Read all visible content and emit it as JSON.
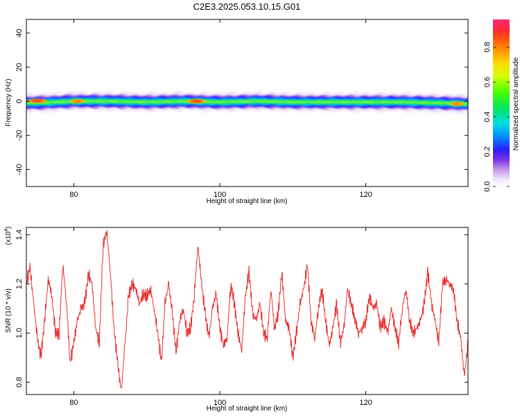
{
  "page": {
    "title": "C2E3.2025.053.10.15.G01"
  },
  "chart_data": [
    {
      "type": "heatmap",
      "title": "C2E3.2025.053.10.15.G01",
      "xlabel": "Height of straight line (km)",
      "ylabel": "Frequency (Hz)",
      "xlim": [
        73.5,
        134
      ],
      "ylim": [
        -50,
        48
      ],
      "xticks": [
        80,
        100,
        120
      ],
      "yticks": [
        -40,
        -20,
        0,
        20,
        40
      ],
      "band": {
        "center_hz": [
          [
            73.5,
            -1.0
          ],
          [
            76,
            -0.8
          ],
          [
            80,
            0.0
          ],
          [
            85,
            0.0
          ],
          [
            90,
            -0.5
          ],
          [
            95,
            0.0
          ],
          [
            100,
            -0.5
          ],
          [
            105,
            0.0
          ],
          [
            110,
            -0.5
          ],
          [
            115,
            -0.5
          ],
          [
            120,
            -0.5
          ],
          [
            125,
            -0.5
          ],
          [
            130,
            -1.0
          ],
          [
            133.5,
            -1.5
          ]
        ],
        "halfwidth_hz": 3.5,
        "peaks": [
          {
            "x": 75.0,
            "y": 0.2,
            "amplitude": 0.95
          },
          {
            "x": 96.8,
            "y": 0.0,
            "amplitude": 0.95
          },
          {
            "x": 132.5,
            "y": -1.5,
            "amplitude": 0.8
          },
          {
            "x": 80.5,
            "y": 0.0,
            "amplitude": 0.75
          }
        ]
      },
      "colorbar": {
        "label": "Normalized spectral amplitude",
        "range": [
          0,
          0.96
        ],
        "ticks": [
          "0.0",
          "0.2",
          "0.4",
          "0.6",
          "0.8"
        ]
      }
    },
    {
      "type": "line",
      "xlabel": "Height of straight line (km)",
      "ylabel": "SNR (10 * v/v)",
      "scale_label": "(x10",
      "scale_exp": "4",
      "scale_close": ")",
      "xlim": [
        73.5,
        134
      ],
      "ylim": [
        0.75,
        1.43
      ],
      "xticks": [
        80,
        100,
        120
      ],
      "yticks": [
        "0.8",
        "1.0",
        "1.2",
        "1.4"
      ],
      "series": [
        {
          "color": "#e8302e",
          "x": [
            73.5,
            74,
            74.5,
            75,
            75.5,
            76,
            76.5,
            77,
            77.5,
            78,
            78.5,
            79,
            79.5,
            80,
            80.5,
            81,
            81.5,
            82,
            82.5,
            83,
            83.5,
            84,
            84.5,
            85,
            85.5,
            86,
            86.5,
            87,
            87.5,
            88,
            88.5,
            89,
            89.5,
            90,
            90.5,
            91,
            91.5,
            92,
            92.5,
            93,
            93.5,
            94,
            94.5,
            95,
            95.5,
            96,
            96.5,
            97,
            97.5,
            98,
            98.5,
            99,
            99.5,
            100,
            100.5,
            101,
            101.5,
            102,
            102.5,
            103,
            103.5,
            104,
            104.5,
            105,
            105.5,
            106,
            106.5,
            107,
            107.5,
            108,
            108.5,
            109,
            109.5,
            110,
            110.5,
            111,
            111.5,
            112,
            112.5,
            113,
            113.5,
            114,
            114.5,
            115,
            115.5,
            116,
            116.5,
            117,
            117.5,
            118,
            118.5,
            119,
            119.5,
            120,
            120.5,
            121,
            121.5,
            122,
            122.5,
            123,
            123.5,
            124,
            124.5,
            125,
            125.5,
            126,
            126.5,
            127,
            127.5,
            128,
            128.5,
            129,
            129.5,
            130,
            130.5,
            131,
            131.5,
            132,
            132.5,
            133,
            133.5,
            134
          ],
          "y": [
            1.2,
            1.27,
            1.12,
            0.98,
            0.9,
            1.05,
            1.22,
            1.15,
            1.0,
            1.0,
            1.28,
            1.12,
            0.88,
            0.96,
            1.05,
            1.1,
            1.12,
            1.24,
            1.2,
            1.02,
            0.96,
            1.35,
            1.42,
            1.25,
            1.02,
            0.88,
            0.76,
            0.95,
            1.15,
            1.2,
            1.18,
            1.12,
            1.16,
            1.15,
            1.18,
            1.1,
            1.0,
            0.88,
            1.12,
            1.2,
            1.08,
            0.92,
            1.05,
            1.1,
            1.0,
            1.02,
            1.15,
            1.36,
            1.2,
            1.08,
            0.98,
            1.1,
            1.16,
            1.02,
            0.95,
            0.98,
            1.2,
            1.12,
            1.0,
            0.93,
            1.15,
            1.25,
            1.08,
            1.05,
            1.12,
            1.0,
            0.98,
            1.18,
            1.02,
            1.08,
            1.25,
            1.05,
            1.02,
            0.9,
            1.0,
            1.12,
            1.18,
            1.28,
            1.05,
            0.98,
            1.1,
            1.18,
            1.05,
            0.95,
            1.02,
            1.12,
            0.96,
            1.02,
            1.18,
            1.12,
            1.06,
            1.0,
            1.02,
            1.05,
            1.15,
            1.1,
            1.12,
            1.02,
            1.05,
            1.0,
            1.1,
            1.02,
            0.96,
            1.1,
            1.18,
            1.05,
            1.0,
            1.02,
            1.05,
            1.12,
            1.25,
            1.12,
            1.05,
            0.96,
            1.2,
            1.22,
            1.2,
            1.18,
            1.05,
            0.98,
            0.82,
            0.96
          ]
        }
      ]
    }
  ]
}
